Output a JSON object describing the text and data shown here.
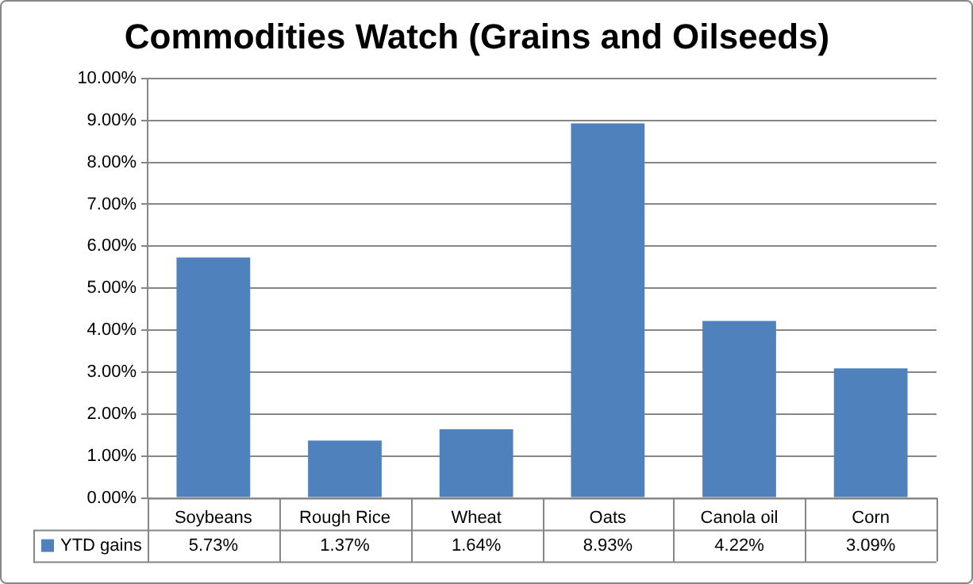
{
  "chart_data": {
    "type": "bar",
    "title": "Commodities Watch (Grains and Oilseeds)",
    "categories": [
      "Soybeans",
      "Rough Rice",
      "Wheat",
      "Oats",
      "Canola oil",
      "Corn"
    ],
    "series": [
      {
        "name": "YTD gains",
        "color": "#4f81bd",
        "values": [
          5.73,
          1.37,
          1.64,
          8.93,
          4.22,
          3.09
        ]
      }
    ],
    "value_labels": [
      "5.73%",
      "1.37%",
      "1.64%",
      "8.93%",
      "4.22%",
      "3.09%"
    ],
    "ylim": [
      0,
      10
    ],
    "yticks": [
      {
        "value": 0,
        "label": "0.00%"
      },
      {
        "value": 1,
        "label": "1.00%"
      },
      {
        "value": 2,
        "label": "2.00%"
      },
      {
        "value": 3,
        "label": "3.00%"
      },
      {
        "value": 4,
        "label": "4.00%"
      },
      {
        "value": 5,
        "label": "5.00%"
      },
      {
        "value": 6,
        "label": "6.00%"
      },
      {
        "value": 7,
        "label": "7.00%"
      },
      {
        "value": 8,
        "label": "8.00%"
      },
      {
        "value": 9,
        "label": "9.00%"
      },
      {
        "value": 10,
        "label": "10.00%"
      }
    ],
    "grid": "y",
    "legend": "bottom left"
  }
}
